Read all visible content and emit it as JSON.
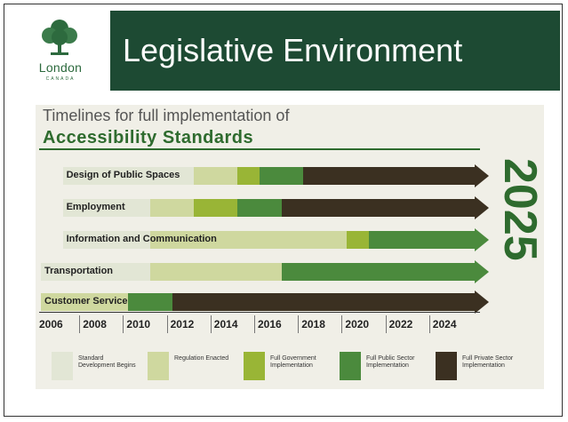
{
  "slide": {
    "title": "Legislative Environment",
    "logo": {
      "name": "London",
      "sub": "CANADA"
    }
  },
  "figure": {
    "title_line1": "Timelines for full implementation of",
    "title_line2": "Accessibility Standards",
    "target_year": "2025"
  },
  "colors": {
    "banner": "#1d4a33",
    "standard_development": "#e2e6d5",
    "regulation_enacted": "#cfd89f",
    "full_government": "#99b536",
    "full_public_sector": "#4b8a3d",
    "full_private_sector": "#3b3021",
    "accent_green": "#2e6b2e"
  },
  "chart_data": {
    "type": "bar",
    "x_axis": {
      "min": 2006,
      "max": 2026,
      "ticks": [
        "2006",
        "2008",
        "2010",
        "2012",
        "2014",
        "2016",
        "2018",
        "2020",
        "2022",
        "2024"
      ]
    },
    "legend": [
      {
        "key": "standard_development",
        "label": "Standard Development Begins"
      },
      {
        "key": "regulation_enacted",
        "label": "Regulation Enacted"
      },
      {
        "key": "full_government",
        "label": "Full Government Implementation"
      },
      {
        "key": "full_public_sector",
        "label": "Full Public Sector Implementation"
      },
      {
        "key": "full_private_sector",
        "label": "Full Private Sector Implementation"
      }
    ],
    "rows": [
      {
        "label": "Design of Public Spaces",
        "start": 2007,
        "segments": [
          {
            "key": "standard_development",
            "end": 2013
          },
          {
            "key": "regulation_enacted",
            "end": 2015
          },
          {
            "key": "full_government",
            "end": 2016
          },
          {
            "key": "full_public_sector",
            "end": 2018
          },
          {
            "key": "full_private_sector",
            "end": 2026
          }
        ]
      },
      {
        "label": "Employment",
        "start": 2007,
        "segments": [
          {
            "key": "standard_development",
            "end": 2011
          },
          {
            "key": "regulation_enacted",
            "end": 2013
          },
          {
            "key": "full_government",
            "end": 2015
          },
          {
            "key": "full_public_sector",
            "end": 2017
          },
          {
            "key": "full_private_sector",
            "end": 2026
          }
        ]
      },
      {
        "label": "Information and Communication",
        "start": 2007,
        "segments": [
          {
            "key": "standard_development",
            "end": 2011
          },
          {
            "key": "regulation_enacted",
            "end": 2020
          },
          {
            "key": "full_government",
            "end": 2021
          },
          {
            "key": "full_public_sector",
            "end": 2026
          }
        ]
      },
      {
        "label": "Transportation",
        "start": 2006,
        "segments": [
          {
            "key": "standard_development",
            "end": 2011
          },
          {
            "key": "regulation_enacted",
            "end": 2017
          },
          {
            "key": "full_public_sector",
            "end": 2026
          }
        ]
      },
      {
        "label": "Customer Service",
        "start": 2006,
        "segments": [
          {
            "key": "regulation_enacted",
            "end": 2010
          },
          {
            "key": "full_public_sector",
            "end": 2012
          },
          {
            "key": "full_private_sector",
            "end": 2026
          }
        ]
      }
    ]
  }
}
